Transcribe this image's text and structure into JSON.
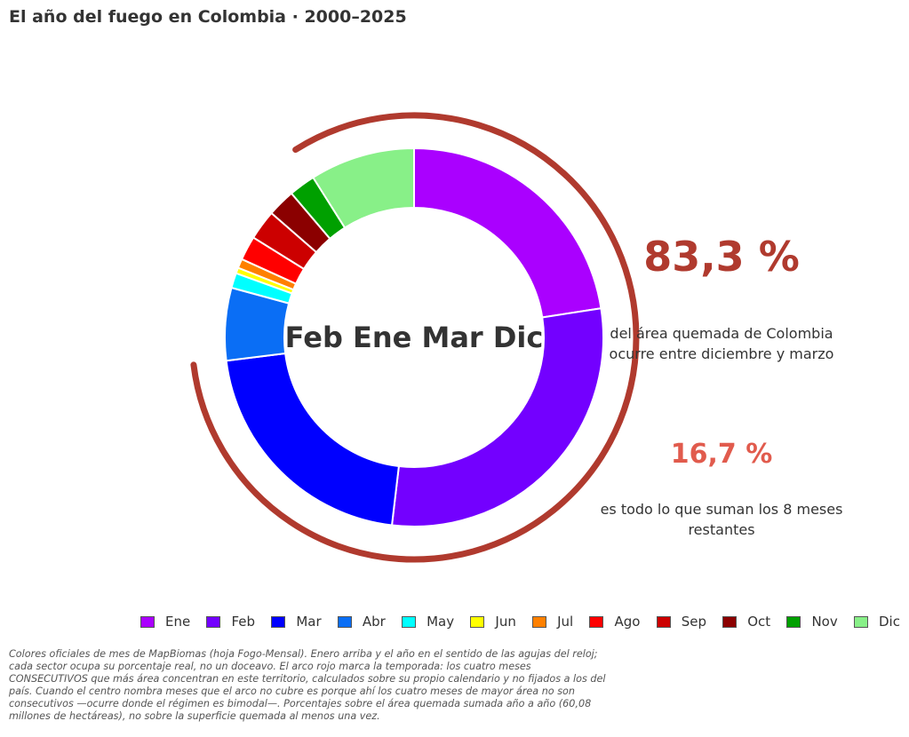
{
  "title": "El año del fuego en Colombia · 2000–2025",
  "chart_data": {
    "type": "pie",
    "variant": "donut",
    "start": "top",
    "direction": "clockwise",
    "categories": [
      "Ene",
      "Feb",
      "Mar",
      "Abr",
      "May",
      "Jun",
      "Jul",
      "Ago",
      "Sep",
      "Oct",
      "Nov",
      "Dic"
    ],
    "values": [
      22.9,
      29.8,
      21.5,
      6.3,
      1.3,
      0.5,
      0.8,
      2.1,
      2.6,
      2.4,
      2.3,
      9.1
    ],
    "colors": [
      "#aa00ff",
      "#7300ff",
      "#0000ff",
      "#0a6ef5",
      "#00ffff",
      "#ffff00",
      "#ff8000",
      "#ff0000",
      "#cc0000",
      "#8b0000",
      "#00a000",
      "#88f088"
    ],
    "legend_position": "bottom",
    "center_label": "Feb Ene Mar Dic",
    "season_arc": {
      "months": [
        "Dic",
        "Ene",
        "Feb",
        "Mar"
      ],
      "color": "#b03a2e"
    }
  },
  "stats": [
    {
      "value": "83,3 %",
      "text": "del área quemada de Colombia ocurre entre diciembre y marzo",
      "color": "#b03a2e"
    },
    {
      "value": "16,7 %",
      "text": "es todo lo que suman los 8 meses restantes",
      "color": "#e15b4d"
    }
  ],
  "footnote": "Colores oficiales de mes de MapBiomas (hoja Fogo-Mensal). Enero arriba y el año en el sentido de las agujas del reloj; cada sector ocupa su porcentaje real, no un doceavo. El arco rojo marca la temporada: los cuatro meses CONSECUTIVOS que más área concentran en este territorio, calculados sobre su propio calendario y no fijados a los del país. Cuando el centro nombra meses que el arco no cubre es porque ahí los cuatro meses de mayor área no son consecutivos —ocurre donde el régimen es bimodal—. Porcentajes sobre el área quemada sumada año a año (60,08 millones de hectáreas), no sobre la superficie quemada al menos una vez."
}
